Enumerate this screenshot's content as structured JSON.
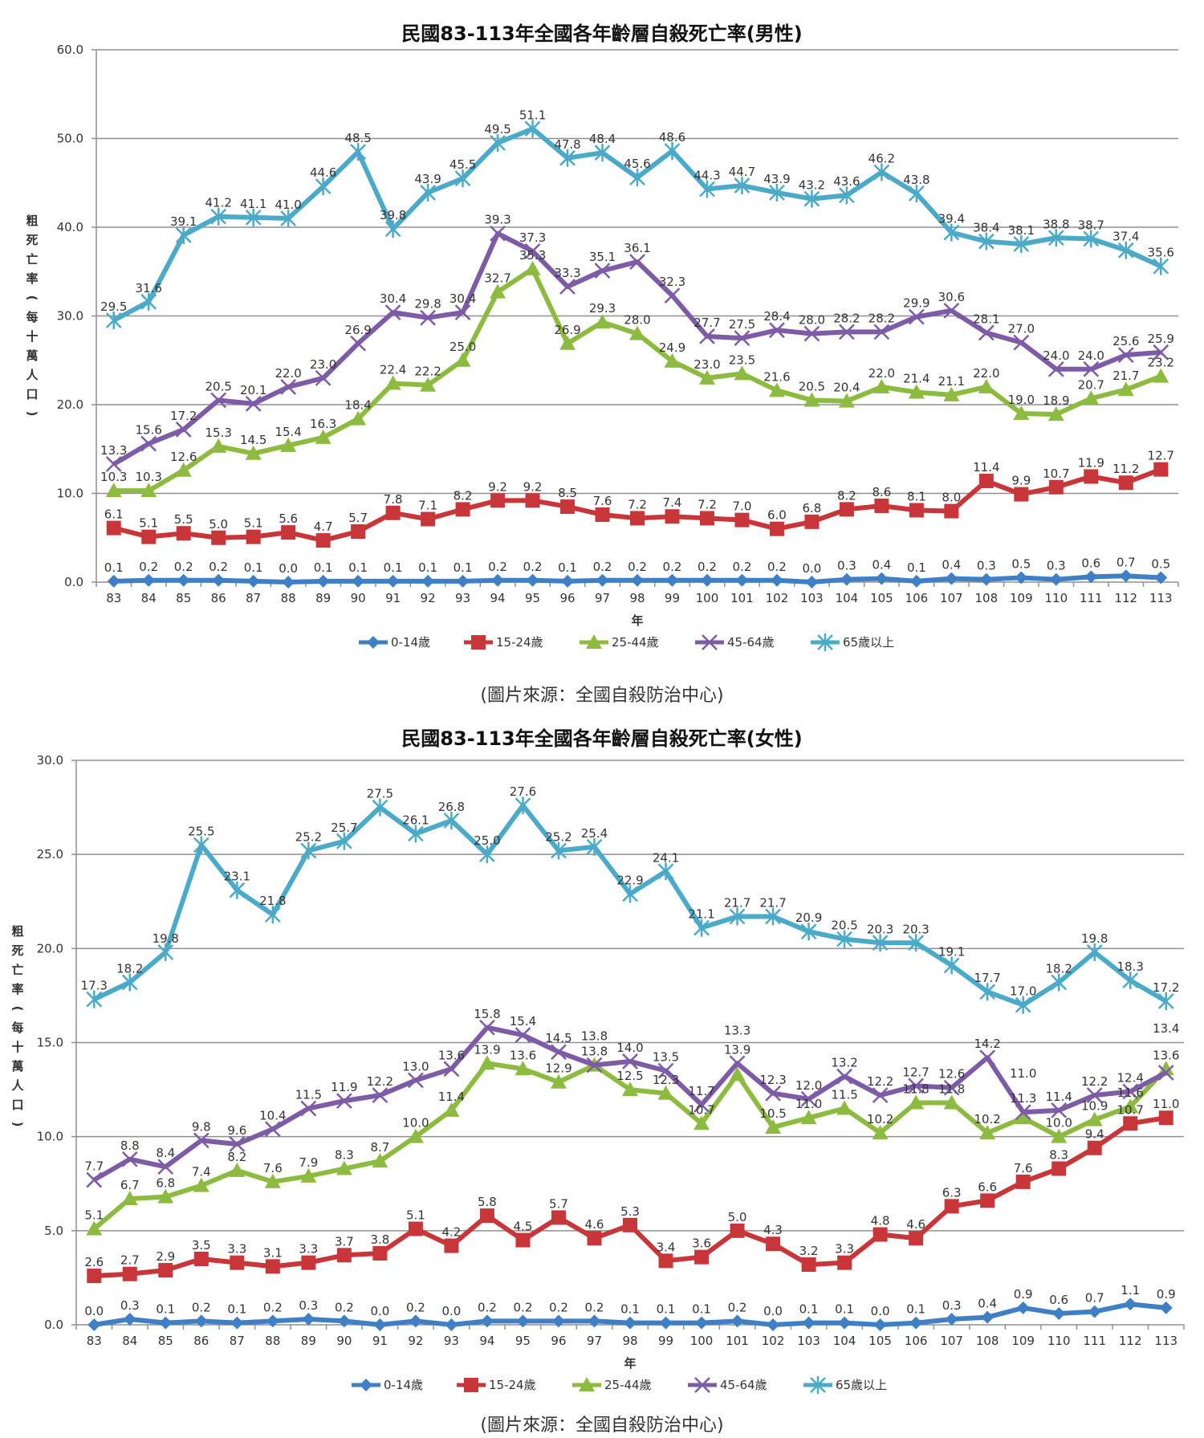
{
  "captions": [
    "(圖片來源：全國自殺防治中心)",
    "(圖片來源：全國自殺防治中心)"
  ],
  "chart_data": [
    {
      "type": "line",
      "title": "民國83-113年全國各年齡層自殺死亡率(男性)",
      "xlabel": "年",
      "ylabel": "粗死亡率(每十萬人口)",
      "ylim": [
        0,
        60
      ],
      "yticks": [
        "0.0",
        "10.0",
        "20.0",
        "30.0",
        "40.0",
        "50.0",
        "60.0"
      ],
      "grid": true,
      "legend_position": "bottom",
      "categories": [
        "83",
        "84",
        "85",
        "86",
        "87",
        "88",
        "89",
        "90",
        "91",
        "92",
        "93",
        "94",
        "95",
        "96",
        "97",
        "98",
        "99",
        "100",
        "101",
        "102",
        "103",
        "104",
        "105",
        "106",
        "107",
        "108",
        "109",
        "110",
        "111",
        "112",
        "113"
      ],
      "series": [
        {
          "name": "0-14歲",
          "color": "#3f7fc6",
          "marker": "diamond",
          "values": [
            0.1,
            0.2,
            0.2,
            0.2,
            0.1,
            0.0,
            0.1,
            0.1,
            0.1,
            0.1,
            0.1,
            0.2,
            0.2,
            0.1,
            0.2,
            0.2,
            0.2,
            0.2,
            0.2,
            0.2,
            0.0,
            0.3,
            0.4,
            0.1,
            0.4,
            0.3,
            0.5,
            0.3,
            0.6,
            0.7,
            0.5
          ]
        },
        {
          "name": "15-24歲",
          "color": "#c9363a",
          "marker": "square",
          "values": [
            6.1,
            5.1,
            5.5,
            5.0,
            5.1,
            5.6,
            4.7,
            5.7,
            7.8,
            7.1,
            8.2,
            9.2,
            9.2,
            8.5,
            7.6,
            7.2,
            7.4,
            7.2,
            7.0,
            6.0,
            6.8,
            8.2,
            8.6,
            8.1,
            8.0,
            11.4,
            9.9,
            10.7,
            11.9,
            11.2,
            12.7
          ]
        },
        {
          "name": "25-44歲",
          "color": "#8dbb3f",
          "marker": "triangle",
          "values": [
            10.3,
            10.3,
            12.6,
            15.3,
            14.5,
            15.4,
            16.3,
            18.4,
            22.4,
            22.2,
            25.0,
            32.7,
            35.3,
            26.9,
            29.3,
            28.0,
            24.9,
            23.0,
            23.5,
            21.6,
            20.5,
            20.4,
            22.0,
            21.4,
            21.1,
            22.0,
            19.0,
            18.9,
            20.7,
            21.7,
            23.2
          ]
        },
        {
          "name": "45-64歲",
          "color": "#7d5ba6",
          "marker": "x",
          "values": [
            13.3,
            15.6,
            17.2,
            20.5,
            20.1,
            22.0,
            23.0,
            26.9,
            30.4,
            29.8,
            30.4,
            39.3,
            37.3,
            33.3,
            35.1,
            36.1,
            32.3,
            27.7,
            27.5,
            28.4,
            28.0,
            28.2,
            28.2,
            29.9,
            30.6,
            28.1,
            27.0,
            24.0,
            24.0,
            25.6,
            25.9
          ]
        },
        {
          "name": "65歲以上",
          "color": "#4aaac8",
          "marker": "star",
          "values": [
            29.5,
            31.6,
            39.1,
            41.2,
            41.1,
            41.0,
            44.6,
            48.5,
            39.8,
            43.9,
            45.5,
            49.5,
            51.1,
            47.8,
            48.4,
            45.6,
            48.6,
            44.3,
            44.7,
            43.9,
            43.2,
            43.6,
            46.2,
            43.8,
            39.4,
            38.4,
            38.1,
            38.8,
            38.7,
            37.4,
            35.6
          ]
        }
      ]
    },
    {
      "type": "line",
      "title": "民國83-113年全國各年齡層自殺死亡率(女性)",
      "xlabel": "年",
      "ylabel": "粗死亡率(每十萬人口)",
      "ylim": [
        0,
        30
      ],
      "yticks": [
        "0.0",
        "5.0",
        "10.0",
        "15.0",
        "20.0",
        "25.0",
        "30.0"
      ],
      "grid": true,
      "legend_position": "bottom",
      "categories": [
        "83",
        "84",
        "85",
        "86",
        "87",
        "88",
        "89",
        "90",
        "91",
        "92",
        "93",
        "94",
        "95",
        "96",
        "97",
        "98",
        "99",
        "100",
        "101",
        "102",
        "103",
        "104",
        "105",
        "106",
        "107",
        "108",
        "109",
        "110",
        "111",
        "112",
        "113"
      ],
      "series": [
        {
          "name": "0-14歲",
          "color": "#3f7fc6",
          "marker": "diamond",
          "values": [
            0.0,
            0.3,
            0.1,
            0.2,
            0.1,
            0.2,
            0.3,
            0.2,
            0.0,
            0.2,
            0.0,
            0.2,
            0.2,
            0.2,
            0.2,
            0.1,
            0.1,
            0.1,
            0.2,
            0.0,
            0.1,
            0.1,
            0.0,
            0.1,
            0.3,
            0.4,
            0.9,
            0.6,
            0.7,
            1.1,
            0.9
          ]
        },
        {
          "name": "15-24歲",
          "color": "#c9363a",
          "marker": "square",
          "values": [
            2.6,
            2.7,
            2.9,
            3.5,
            3.3,
            3.1,
            3.3,
            3.7,
            3.8,
            5.1,
            4.2,
            5.8,
            4.5,
            5.7,
            4.6,
            5.3,
            3.4,
            3.6,
            5.0,
            4.3,
            3.2,
            3.3,
            4.8,
            4.6,
            6.3,
            6.6,
            7.6,
            8.3,
            9.4,
            10.7,
            11.0
          ]
        },
        {
          "name": "25-44歲",
          "color": "#8dbb3f",
          "marker": "triangle",
          "values": [
            5.1,
            6.7,
            6.8,
            7.4,
            8.2,
            7.6,
            7.9,
            8.3,
            8.7,
            10.0,
            11.4,
            13.9,
            13.6,
            12.9,
            13.8,
            12.5,
            12.3,
            10.7,
            13.3,
            10.5,
            11.0,
            11.5,
            10.2,
            11.8,
            11.8,
            10.2,
            11.0,
            10.0,
            10.9,
            11.6,
            13.6
          ]
        },
        {
          "name": "45-64歲",
          "color": "#7d5ba6",
          "marker": "x",
          "values": [
            7.7,
            8.8,
            8.4,
            9.8,
            9.6,
            10.4,
            11.5,
            11.9,
            12.2,
            13.0,
            13.6,
            15.8,
            15.4,
            14.5,
            13.8,
            14.0,
            13.5,
            11.7,
            13.9,
            12.3,
            12.0,
            13.2,
            12.2,
            12.7,
            12.6,
            14.2,
            11.3,
            11.4,
            12.2,
            12.4,
            13.4
          ]
        },
        {
          "name": "65歲以上",
          "color": "#4aaac8",
          "marker": "star",
          "values": [
            17.3,
            18.2,
            19.8,
            25.5,
            23.1,
            21.8,
            25.2,
            25.7,
            27.5,
            26.1,
            26.8,
            25.0,
            27.6,
            25.2,
            25.4,
            22.9,
            24.1,
            21.1,
            21.7,
            21.7,
            20.9,
            20.5,
            20.3,
            20.3,
            19.1,
            17.7,
            17.0,
            18.2,
            19.8,
            18.3,
            17.2
          ]
        }
      ]
    }
  ]
}
